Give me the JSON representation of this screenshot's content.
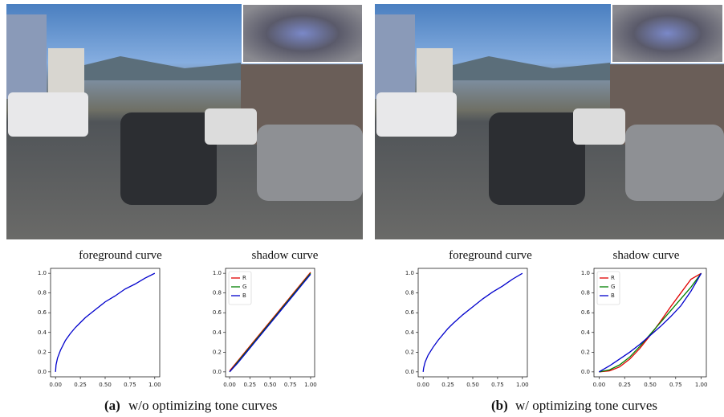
{
  "panels": [
    {
      "label": "(a)",
      "caption": "w/o optimizing tone curves"
    },
    {
      "label": "(b)",
      "caption": "w/ optimizing tone curves"
    }
  ],
  "chart_data": [
    {
      "type": "line",
      "title": "foreground curve",
      "color": "#0000cc",
      "x": [
        0,
        0.005,
        0.02,
        0.05,
        0.1,
        0.15,
        0.2,
        0.25,
        0.3,
        0.4,
        0.5,
        0.6,
        0.7,
        0.8,
        0.9,
        1.0
      ],
      "values": [
        0,
        0.07,
        0.14,
        0.22,
        0.32,
        0.39,
        0.45,
        0.5,
        0.55,
        0.63,
        0.71,
        0.77,
        0.84,
        0.89,
        0.95,
        1.0
      ],
      "xlim": [
        -0.05,
        1.05
      ],
      "ylim": [
        -0.05,
        1.05
      ],
      "xticks": [
        {
          "value": 0,
          "label": "0.00"
        },
        {
          "value": 0.25,
          "label": "0.25"
        },
        {
          "value": 0.5,
          "label": "0.50"
        },
        {
          "value": 0.75,
          "label": "0.75"
        },
        {
          "value": 1,
          "label": "1.00"
        }
      ],
      "yticks": [
        {
          "value": 0,
          "label": "0.0"
        },
        0.2,
        0.4,
        0.6,
        0.8,
        {
          "value": 1,
          "label": "1.0"
        }
      ]
    },
    {
      "type": "line",
      "title": "shadow curve",
      "legend": "upper left",
      "x": [
        0,
        0.1,
        0.2,
        0.3,
        0.4,
        0.5,
        0.6,
        0.7,
        0.8,
        0.9,
        1.0
      ],
      "series": [
        {
          "name": "R",
          "color": "#e00000",
          "values": [
            0.01,
            0.11,
            0.21,
            0.31,
            0.41,
            0.51,
            0.61,
            0.71,
            0.81,
            0.91,
            1.01
          ]
        },
        {
          "name": "G",
          "color": "#008000",
          "values": [
            0,
            0.1,
            0.2,
            0.3,
            0.4,
            0.5,
            0.6,
            0.7,
            0.8,
            0.9,
            1.0
          ]
        },
        {
          "name": "B",
          "color": "#0000cc",
          "values": [
            0,
            0.09,
            0.19,
            0.29,
            0.39,
            0.49,
            0.59,
            0.69,
            0.79,
            0.89,
            0.99
          ]
        }
      ],
      "xlim": [
        -0.05,
        1.05
      ],
      "ylim": [
        -0.05,
        1.05
      ],
      "xticks": [
        {
          "value": 0,
          "label": "0.00"
        },
        {
          "value": 0.25,
          "label": "0.25"
        },
        {
          "value": 0.5,
          "label": "0.50"
        },
        {
          "value": 0.75,
          "label": "0.75"
        },
        {
          "value": 1,
          "label": "1.00"
        }
      ],
      "yticks": [
        {
          "value": 0,
          "label": "0.0"
        },
        0.2,
        0.4,
        0.6,
        0.8,
        {
          "value": 1,
          "label": "1.0"
        }
      ]
    },
    {
      "type": "line",
      "title": "foreground curve",
      "color": "#0000cc",
      "x": [
        0,
        0.005,
        0.02,
        0.05,
        0.1,
        0.15,
        0.2,
        0.25,
        0.3,
        0.4,
        0.5,
        0.6,
        0.7,
        0.8,
        0.9,
        1.0
      ],
      "values": [
        0,
        0.04,
        0.1,
        0.17,
        0.25,
        0.32,
        0.38,
        0.44,
        0.49,
        0.58,
        0.66,
        0.74,
        0.81,
        0.87,
        0.94,
        1.0
      ],
      "xlim": [
        -0.05,
        1.05
      ],
      "ylim": [
        -0.05,
        1.05
      ],
      "xticks": [
        {
          "value": 0,
          "label": "0.00"
        },
        {
          "value": 0.25,
          "label": "0.25"
        },
        {
          "value": 0.5,
          "label": "0.50"
        },
        {
          "value": 0.75,
          "label": "0.75"
        },
        {
          "value": 1,
          "label": "1.00"
        }
      ],
      "yticks": [
        {
          "value": 0,
          "label": "0.0"
        },
        0.2,
        0.4,
        0.6,
        0.8,
        {
          "value": 1,
          "label": "1.0"
        }
      ]
    },
    {
      "type": "line",
      "title": "shadow curve",
      "legend": "upper left",
      "x": [
        0,
        0.1,
        0.2,
        0.3,
        0.4,
        0.5,
        0.6,
        0.7,
        0.8,
        0.9,
        1.0
      ],
      "series": [
        {
          "name": "R",
          "color": "#e00000",
          "values": [
            0,
            0.01,
            0.05,
            0.13,
            0.24,
            0.37,
            0.51,
            0.66,
            0.8,
            0.94,
            1.0
          ]
        },
        {
          "name": "G",
          "color": "#008000",
          "values": [
            0,
            0.02,
            0.07,
            0.15,
            0.26,
            0.38,
            0.5,
            0.62,
            0.74,
            0.86,
            1.0
          ]
        },
        {
          "name": "B",
          "color": "#0000cc",
          "values": [
            0,
            0.06,
            0.13,
            0.2,
            0.28,
            0.37,
            0.46,
            0.56,
            0.67,
            0.82,
            1.0
          ]
        }
      ],
      "xlim": [
        -0.05,
        1.05
      ],
      "ylim": [
        -0.05,
        1.05
      ],
      "xticks": [
        {
          "value": 0,
          "label": "0.00"
        },
        {
          "value": 0.25,
          "label": "0.25"
        },
        {
          "value": 0.5,
          "label": "0.50"
        },
        {
          "value": 0.75,
          "label": "0.75"
        },
        {
          "value": 1,
          "label": "1.00"
        }
      ],
      "yticks": [
        {
          "value": 0,
          "label": "0.0"
        },
        0.2,
        0.4,
        0.6,
        0.8,
        {
          "value": 1,
          "label": "1.0"
        }
      ]
    }
  ]
}
